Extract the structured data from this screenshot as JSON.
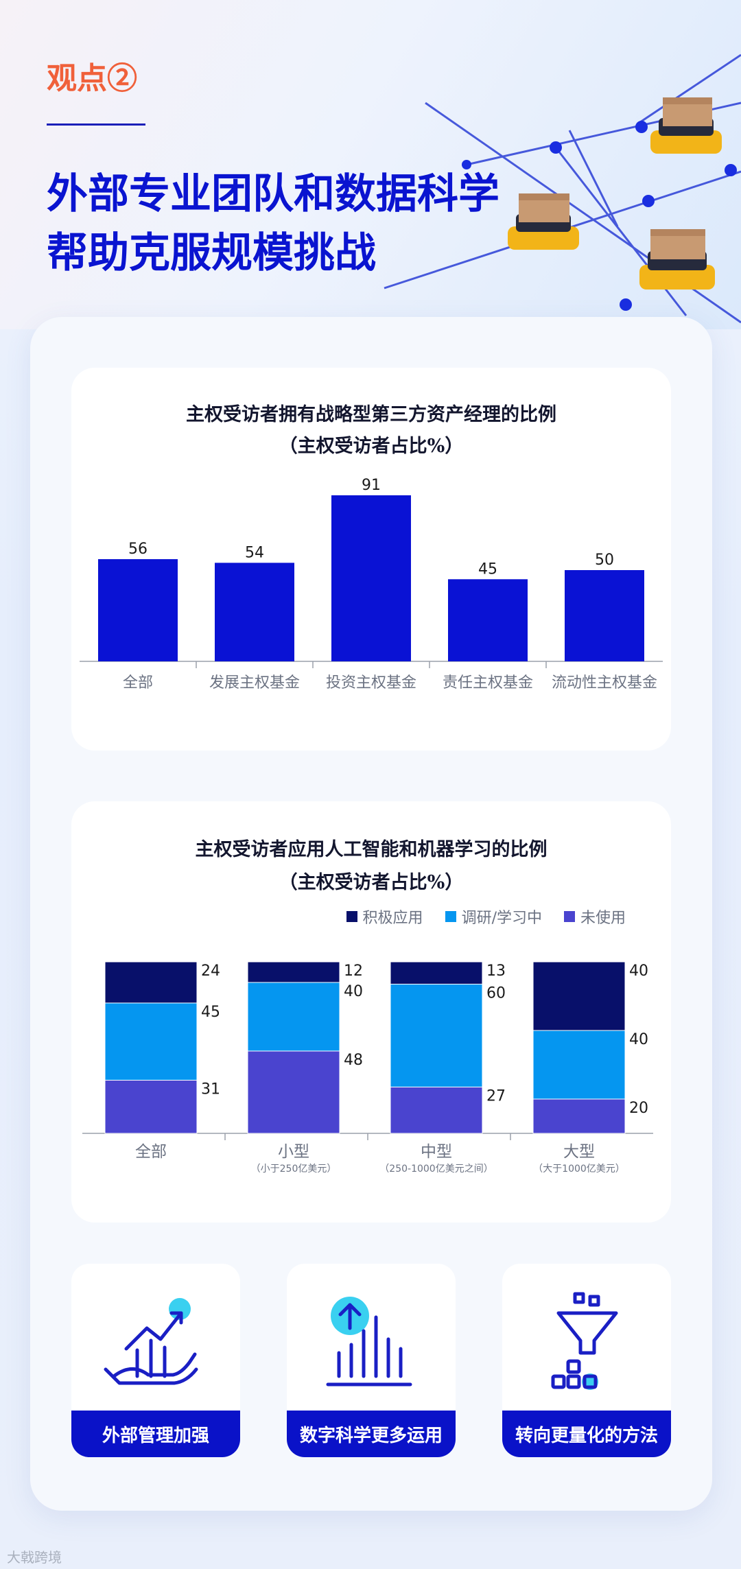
{
  "header": {
    "kicker": "观点②",
    "headline_lines": [
      "外部专业团队和数据科学",
      "帮助克服规模挑战"
    ]
  },
  "chart1": {
    "title": "主权受访者拥有战略型第三方资产经理的比例",
    "subtitle": "（主权受访者占比%）"
  },
  "chart2": {
    "title": "主权受访者应用人工智能和机器学习的比例",
    "subtitle": "（主权受访者占比%）"
  },
  "chart_data": [
    {
      "type": "bar",
      "categories": [
        "全部",
        "发展主权基金",
        "投资主权基金",
        "责任主权基金",
        "流动性主权基金"
      ],
      "values": [
        56,
        54,
        91,
        45,
        50
      ],
      "ylim": [
        0,
        100
      ],
      "grid": false,
      "color": "#0a12d4"
    },
    {
      "type": "bar",
      "stacked": true,
      "categories": [
        "全部",
        "小型",
        "中型",
        "大型"
      ],
      "category_notes": [
        "",
        "（小于250亿美元）",
        "（250-1000亿美元之间）",
        "（大于1000亿美元）"
      ],
      "series": [
        {
          "name": "积极应用",
          "values": [
            24,
            12,
            13,
            40
          ],
          "color": "#08106a"
        },
        {
          "name": "调研/学习中",
          "values": [
            45,
            40,
            60,
            40
          ],
          "color": "#0596f0"
        },
        {
          "name": "未使用",
          "values": [
            31,
            48,
            27,
            20
          ],
          "color": "#4a44cf"
        }
      ],
      "ylim": [
        0,
        100
      ],
      "legend": "top-right",
      "grid": false
    }
  ],
  "tiles": [
    {
      "label": "外部管理加强",
      "icon": "hand-growth-chart-icon"
    },
    {
      "label": "数字科学更多运用",
      "icon": "upload-bars-icon"
    },
    {
      "label": "转向更量化的方法",
      "icon": "funnel-blocks-icon"
    }
  ],
  "watermark": "大戟跨境",
  "colors": {
    "accent": "#f0603a",
    "brand": "#0a12c8",
    "highlight": "#3ad0f0"
  }
}
